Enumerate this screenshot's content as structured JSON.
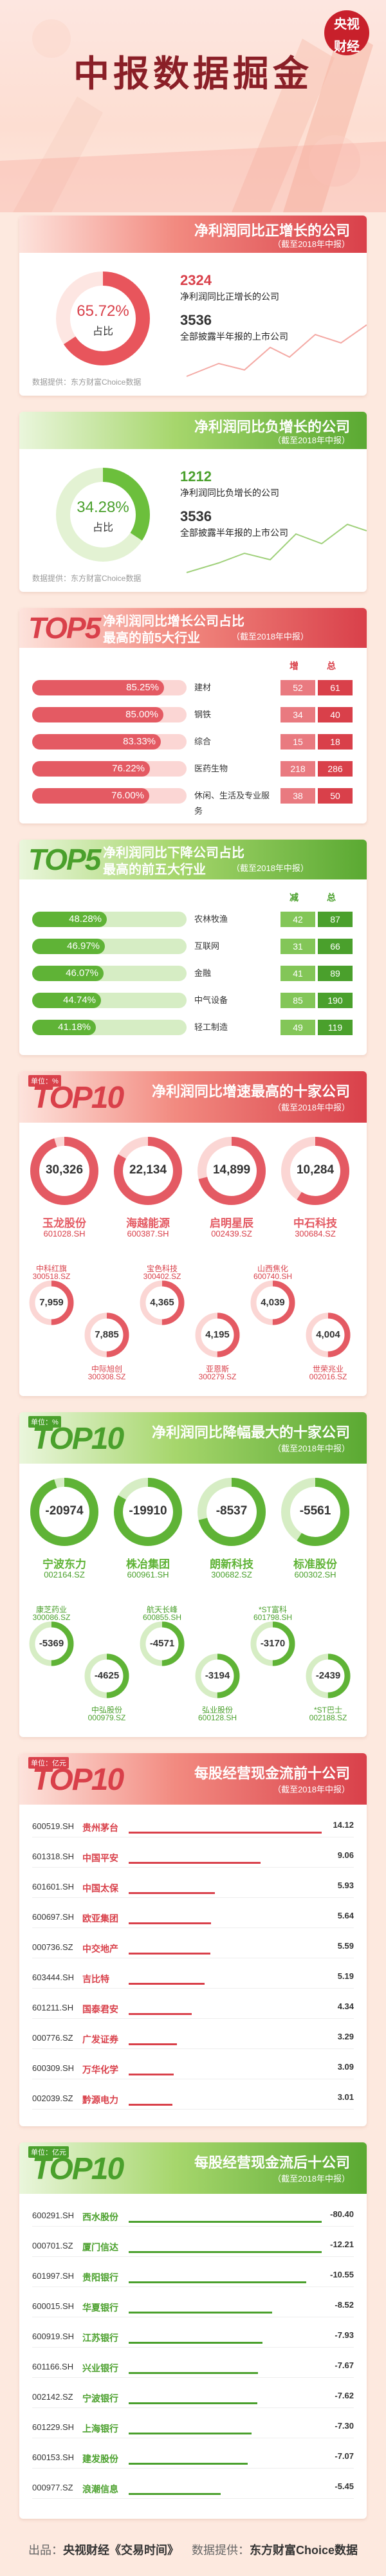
{
  "header": {
    "title": "中报数据掘金",
    "logo_line1": "央视",
    "logo_line2": "财经"
  },
  "section1": {
    "title": "净利润同比正增长的公司",
    "subtitle": "（截至2018年中报）",
    "ring_pct": "65.72%",
    "ring_label": "占比",
    "count": "2324",
    "count_label": "净利润同比正增长的公司",
    "total": "3536",
    "total_label": "全部披露半年报的上市公司",
    "ring_fraction": 0.6572,
    "source": "数据提供：东方财富Choice数据"
  },
  "section2": {
    "title": "净利润同比负增长的公司",
    "subtitle": "（截至2018年中报）",
    "ring_pct": "34.28%",
    "ring_label": "占比",
    "count": "1212",
    "count_label": "净利润同比负增长的公司",
    "total": "3536",
    "total_label": "全部披露半年报的上市公司",
    "ring_fraction": 0.3428,
    "source": "数据提供：东方财富Choice数据"
  },
  "section3": {
    "badge": "TOP5",
    "title1": "净利润同比增长公司占比",
    "title2": "最高的前5大行业",
    "subtitle": "（截至2018年中报）",
    "col_inc": "增",
    "col_total": "总",
    "rows": [
      {
        "pct": "85.25%",
        "name": "建材",
        "v1": "52",
        "v2": "61",
        "frac": 0.8525
      },
      {
        "pct": "85.00%",
        "name": "钢铁",
        "v1": "34",
        "v2": "40",
        "frac": 0.85
      },
      {
        "pct": "83.33%",
        "name": "综合",
        "v1": "15",
        "v2": "18",
        "frac": 0.8333
      },
      {
        "pct": "76.22%",
        "name": "医药生物",
        "v1": "218",
        "v2": "286",
        "frac": 0.7622
      },
      {
        "pct": "76.00%",
        "name": "休闲、生活及专业服务",
        "v1": "38",
        "v2": "50",
        "frac": 0.76
      }
    ]
  },
  "section4": {
    "badge": "TOP5",
    "title1": "净利润同比下降公司占比",
    "title2": "最高的前五大行业",
    "subtitle": "（截至2018年中报）",
    "col_dec": "减",
    "col_total": "总",
    "rows": [
      {
        "pct": "48.28%",
        "name": "农林牧渔",
        "v1": "42",
        "v2": "87",
        "frac": 0.4828
      },
      {
        "pct": "46.97%",
        "name": "互联网",
        "v1": "31",
        "v2": "66",
        "frac": 0.4697
      },
      {
        "pct": "46.07%",
        "name": "金融",
        "v1": "41",
        "v2": "89",
        "frac": 0.4607
      },
      {
        "pct": "44.74%",
        "name": "中气设备",
        "v1": "85",
        "v2": "190",
        "frac": 0.4474
      },
      {
        "pct": "41.18%",
        "name": "轻工制造",
        "v1": "49",
        "v2": "119",
        "frac": 0.4118
      }
    ]
  },
  "section5": {
    "unit": "单位：%",
    "badge": "TOP10",
    "title": "净利润同比增速最高的十家公司",
    "subtitle": "（截至2018年中报）",
    "big": [
      {
        "value": "30,326",
        "name": "玉龙股份",
        "code": "601028.SH"
      },
      {
        "value": "22,134",
        "name": "海越能源",
        "code": "600387.SH"
      },
      {
        "value": "14,899",
        "name": "启明星辰",
        "code": "002439.SZ"
      },
      {
        "value": "10,284",
        "name": "中石科技",
        "code": "300684.SZ"
      }
    ],
    "small": [
      {
        "value": "7,959",
        "name": "中科红旗",
        "code": "300518.SZ"
      },
      {
        "value": "7,885",
        "name": "中际旭创",
        "code": "300308.SZ"
      },
      {
        "value": "4,365",
        "name": "宝色科技",
        "code": "300402.SZ"
      },
      {
        "value": "4,195",
        "name": "亚恩斯",
        "code": "300279.SZ"
      },
      {
        "value": "4,039",
        "name": "山西焦化",
        "code": "600740.SH"
      },
      {
        "value": "4,004",
        "name": "世荣兆业",
        "code": "002016.SZ"
      }
    ]
  },
  "section6": {
    "unit": "单位：%",
    "badge": "TOP10",
    "title": "净利润同比降幅最大的十家公司",
    "subtitle": "（截至2018年中报）",
    "big": [
      {
        "value": "-20974",
        "name": "宁波东力",
        "code": "002164.SZ"
      },
      {
        "value": "-19910",
        "name": "株冶集团",
        "code": "600961.SH"
      },
      {
        "value": "-8537",
        "name": "朗新科技",
        "code": "300682.SZ"
      },
      {
        "value": "-5561",
        "name": "标准股份",
        "code": "600302.SH"
      }
    ],
    "small": [
      {
        "value": "-5369",
        "name": "康芝药业",
        "code": "300086.SZ"
      },
      {
        "value": "-4625",
        "name": "中弘股份",
        "code": "000979.SZ"
      },
      {
        "value": "-4571",
        "name": "航天长峰",
        "code": "600855.SH"
      },
      {
        "value": "-3194",
        "name": "弘业股份",
        "code": "600128.SH"
      },
      {
        "value": "-3170",
        "name": "*ST富科",
        "code": "601798.SH"
      },
      {
        "value": "-2439",
        "name": "*ST巴士",
        "code": "002188.SZ"
      }
    ]
  },
  "section7": {
    "unit": "单位：亿元",
    "badge": "TOP10",
    "title": "每股经营现金流前十公司",
    "subtitle": "（截至2018年中报）",
    "rows": [
      {
        "code": "600519.SH",
        "name": "贵州茅台",
        "value": "14.12",
        "num": 14.12
      },
      {
        "code": "601318.SH",
        "name": "中国平安",
        "value": "9.06",
        "num": 9.06
      },
      {
        "code": "601601.SH",
        "name": "中国太保",
        "value": "5.93",
        "num": 5.93
      },
      {
        "code": "600697.SH",
        "name": "欧亚集团",
        "value": "5.64",
        "num": 5.64
      },
      {
        "code": "000736.SZ",
        "name": "中交地产",
        "value": "5.59",
        "num": 5.59
      },
      {
        "code": "603444.SH",
        "name": "吉比特",
        "value": "5.19",
        "num": 5.19
      },
      {
        "code": "601211.SH",
        "name": "国泰君安",
        "value": "4.34",
        "num": 4.34
      },
      {
        "code": "000776.SZ",
        "name": "广发证券",
        "value": "3.29",
        "num": 3.29
      },
      {
        "code": "600309.SH",
        "name": "万华化学",
        "value": "3.09",
        "num": 3.09
      },
      {
        "code": "002039.SZ",
        "name": "黔源电力",
        "value": "3.01",
        "num": 3.01
      }
    ]
  },
  "section8": {
    "unit": "单位：亿元",
    "badge": "TOP10",
    "title": "每股经营现金流后十公司",
    "subtitle": "（截至2018年中报）",
    "rows": [
      {
        "code": "600291.SH",
        "name": "西水股份",
        "value": "-80.40",
        "num": 80.4
      },
      {
        "code": "000701.SZ",
        "name": "厦门信达",
        "value": "-12.21",
        "num": 12.21
      },
      {
        "code": "601997.SH",
        "name": "贵阳银行",
        "value": "-10.55",
        "num": 10.55
      },
      {
        "code": "600015.SH",
        "name": "华夏银行",
        "value": "-8.52",
        "num": 8.52
      },
      {
        "code": "600919.SH",
        "name": "江苏银行",
        "value": "-7.93",
        "num": 7.93
      },
      {
        "code": "601166.SH",
        "name": "兴业银行",
        "value": "-7.67",
        "num": 7.67
      },
      {
        "code": "002142.SZ",
        "name": "宁波银行",
        "value": "-7.62",
        "num": 7.62
      },
      {
        "code": "601229.SH",
        "name": "上海银行",
        "value": "-7.30",
        "num": 7.3
      },
      {
        "code": "600153.SH",
        "name": "建发股份",
        "value": "-7.07",
        "num": 7.07
      },
      {
        "code": "000977.SZ",
        "name": "浪潮信息",
        "value": "-5.45",
        "num": 5.45
      }
    ]
  },
  "footer": {
    "label1": "出品：",
    "label1_value": "央视财经《交易时间》",
    "label2": "数据提供：",
    "label2_value": "东方财富Choice数据"
  },
  "colors": {
    "red": "#d9404a",
    "green": "#4aa02c",
    "pink_bg": "#fde9df"
  }
}
